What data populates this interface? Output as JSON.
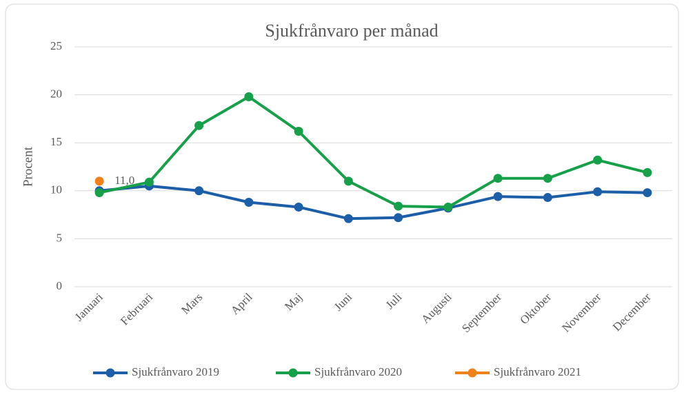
{
  "chart_data": {
    "type": "line",
    "title": "Sjukfrånvaro per månad",
    "y_label": "Procent",
    "categories": [
      "Januari",
      "Februari",
      "Mars",
      "April",
      "Maj",
      "Juni",
      "Juli",
      "Augusti",
      "September",
      "Oktober",
      "November",
      "December"
    ],
    "series": [
      {
        "name": "Sjukfrånvaro 2019",
        "color": "#1c5ea8",
        "values": [
          10.0,
          10.5,
          10.0,
          8.8,
          8.3,
          7.1,
          7.2,
          8.2,
          9.4,
          9.3,
          9.9,
          9.8
        ]
      },
      {
        "name": "Sjukfrånvaro 2020",
        "color": "#15a049",
        "values": [
          9.8,
          10.9,
          16.8,
          19.8,
          16.2,
          11.0,
          8.4,
          8.3,
          11.3,
          11.3,
          13.2,
          11.9
        ]
      },
      {
        "name": "Sjukfrånvaro 2021",
        "color": "#f08018",
        "values": [
          11.0,
          null,
          null,
          null,
          null,
          null,
          null,
          null,
          null,
          null,
          null,
          null
        ],
        "value_labels": [
          "11,0",
          null,
          null,
          null,
          null,
          null,
          null,
          null,
          null,
          null,
          null,
          null
        ]
      }
    ],
    "ylim": [
      0,
      25
    ],
    "yticks": [
      0,
      5,
      10,
      15,
      20,
      25
    ],
    "grid": true,
    "legend": "bottom"
  }
}
